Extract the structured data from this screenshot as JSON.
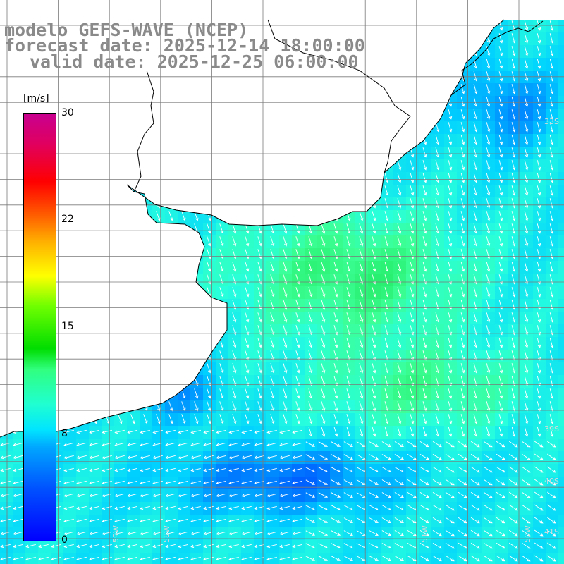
{
  "header": {
    "model": "modelo GEFS-WAVE (NCEP)",
    "forecast": "forecast date: 2025-12-14 18:00:00",
    "valid": "valid date: 2025-12-25 06:00:00"
  },
  "colorbar": {
    "unit": "[m/s]",
    "ticks": [
      "30",
      "22",
      "15",
      "8",
      "0"
    ],
    "tick_values": [
      30,
      22,
      15,
      8,
      0
    ]
  },
  "grid_labels": {
    "lat": [
      "33S",
      "39S",
      "40S",
      "41S"
    ],
    "lon": [
      "59W",
      "58W",
      "51W",
      "50W"
    ]
  },
  "colors": {
    "land": "#ffffff",
    "coast": "#000000",
    "grid": "#7a7a7a",
    "arrow": "#ffffff"
  }
}
